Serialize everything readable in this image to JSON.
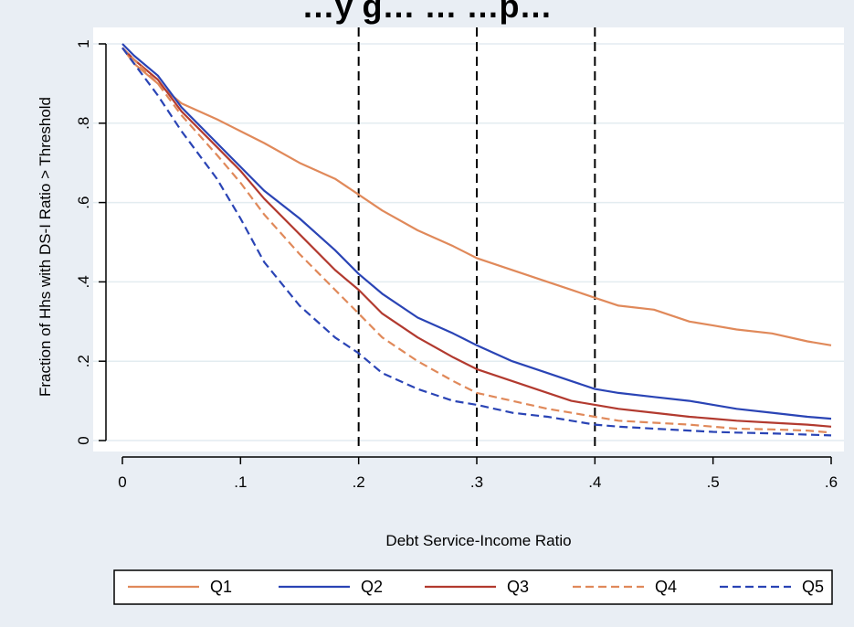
{
  "title": "…y g… … …p…",
  "chart_data": {
    "type": "line",
    "title": "",
    "xlabel": "Debt Service-Income Ratio",
    "ylabel": "Fraction of Hhs with DS-I Ratio > Threshold",
    "xlim": [
      0,
      0.6
    ],
    "ylim": [
      0,
      1
    ],
    "x_ticks": [
      0,
      0.1,
      0.2,
      0.3,
      0.4,
      0.5,
      0.6
    ],
    "x_tick_labels": [
      "0",
      ".1",
      ".2",
      ".3",
      ".4",
      ".5",
      ".6"
    ],
    "y_ticks": [
      0,
      0.2,
      0.4,
      0.6,
      0.8,
      1
    ],
    "y_tick_labels": [
      "0",
      ".2",
      ".4",
      ".6",
      ".8",
      "1"
    ],
    "grid": "horizontal",
    "reference_lines_x": [
      0.2,
      0.3,
      0.4
    ],
    "legend_position": "bottom",
    "colors": {
      "background": "#e9eef4",
      "plot_area": "#ffffff",
      "grid": "#e3ecf0",
      "reference_line": "#000000"
    },
    "series": [
      {
        "name": "Q1",
        "color": "#e0895a",
        "dash": "solid",
        "x": [
          0,
          0.01,
          0.03,
          0.05,
          0.08,
          0.1,
          0.12,
          0.15,
          0.18,
          0.2,
          0.22,
          0.25,
          0.28,
          0.3,
          0.33,
          0.36,
          0.38,
          0.4,
          0.42,
          0.45,
          0.48,
          0.5,
          0.52,
          0.55,
          0.58,
          0.6
        ],
        "y": [
          0.99,
          0.95,
          0.9,
          0.85,
          0.81,
          0.78,
          0.75,
          0.7,
          0.66,
          0.62,
          0.58,
          0.53,
          0.49,
          0.46,
          0.43,
          0.4,
          0.38,
          0.36,
          0.34,
          0.33,
          0.3,
          0.29,
          0.28,
          0.27,
          0.25,
          0.24
        ]
      },
      {
        "name": "Q2",
        "color": "#2a44b5",
        "dash": "solid",
        "x": [
          0,
          0.01,
          0.03,
          0.05,
          0.08,
          0.1,
          0.12,
          0.15,
          0.18,
          0.2,
          0.22,
          0.25,
          0.28,
          0.3,
          0.33,
          0.36,
          0.38,
          0.4,
          0.42,
          0.45,
          0.48,
          0.5,
          0.52,
          0.55,
          0.58,
          0.6
        ],
        "y": [
          1.0,
          0.97,
          0.92,
          0.84,
          0.75,
          0.69,
          0.63,
          0.56,
          0.48,
          0.42,
          0.37,
          0.31,
          0.27,
          0.24,
          0.2,
          0.17,
          0.15,
          0.13,
          0.12,
          0.11,
          0.1,
          0.09,
          0.08,
          0.07,
          0.06,
          0.055
        ]
      },
      {
        "name": "Q3",
        "color": "#b23a2f",
        "dash": "solid",
        "x": [
          0,
          0.01,
          0.03,
          0.05,
          0.08,
          0.1,
          0.12,
          0.15,
          0.18,
          0.2,
          0.22,
          0.25,
          0.28,
          0.3,
          0.33,
          0.36,
          0.38,
          0.4,
          0.42,
          0.45,
          0.48,
          0.5,
          0.52,
          0.55,
          0.58,
          0.6
        ],
        "y": [
          0.99,
          0.96,
          0.91,
          0.83,
          0.74,
          0.68,
          0.61,
          0.52,
          0.43,
          0.38,
          0.32,
          0.26,
          0.21,
          0.18,
          0.15,
          0.12,
          0.1,
          0.09,
          0.08,
          0.07,
          0.06,
          0.055,
          0.05,
          0.045,
          0.04,
          0.035
        ]
      },
      {
        "name": "Q4",
        "color": "#e0895a",
        "dash": "dashed",
        "x": [
          0,
          0.01,
          0.03,
          0.05,
          0.08,
          0.1,
          0.12,
          0.15,
          0.18,
          0.2,
          0.22,
          0.25,
          0.28,
          0.3,
          0.33,
          0.36,
          0.38,
          0.4,
          0.42,
          0.45,
          0.48,
          0.5,
          0.52,
          0.55,
          0.58,
          0.6
        ],
        "y": [
          0.99,
          0.96,
          0.9,
          0.82,
          0.72,
          0.65,
          0.57,
          0.47,
          0.38,
          0.32,
          0.26,
          0.2,
          0.15,
          0.12,
          0.1,
          0.08,
          0.07,
          0.06,
          0.05,
          0.045,
          0.04,
          0.035,
          0.03,
          0.028,
          0.025,
          0.02
        ]
      },
      {
        "name": "Q5",
        "color": "#2a44b5",
        "dash": "dashed",
        "x": [
          0,
          0.01,
          0.03,
          0.05,
          0.08,
          0.1,
          0.12,
          0.15,
          0.18,
          0.2,
          0.22,
          0.25,
          0.28,
          0.3,
          0.33,
          0.36,
          0.38,
          0.4,
          0.42,
          0.45,
          0.48,
          0.5,
          0.52,
          0.55,
          0.58,
          0.6
        ],
        "y": [
          0.99,
          0.95,
          0.87,
          0.78,
          0.66,
          0.56,
          0.45,
          0.34,
          0.26,
          0.22,
          0.17,
          0.13,
          0.1,
          0.09,
          0.07,
          0.06,
          0.05,
          0.04,
          0.035,
          0.03,
          0.025,
          0.022,
          0.02,
          0.018,
          0.015,
          0.013
        ]
      }
    ]
  }
}
